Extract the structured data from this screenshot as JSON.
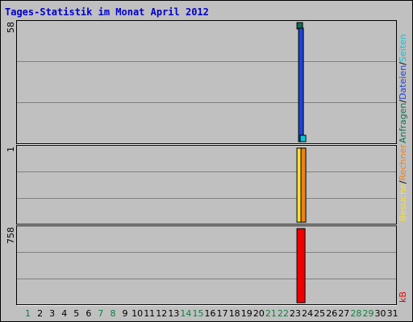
{
  "chart_data": {
    "type": "bar",
    "title": "Tages-Statistik im Monat April 2012",
    "days": [
      "1",
      "2",
      "3",
      "4",
      "5",
      "6",
      "7",
      "8",
      "9",
      "10",
      "11",
      "12",
      "13",
      "14",
      "15",
      "16",
      "17",
      "18",
      "19",
      "20",
      "21",
      "22",
      "23",
      "24",
      "25",
      "26",
      "27",
      "28",
      "29",
      "30",
      "31"
    ],
    "weekend_days": [
      "1",
      "7",
      "8",
      "14",
      "15",
      "21",
      "22",
      "28",
      "29"
    ],
    "panels": [
      {
        "id": "top",
        "max_label": "58",
        "max": 58,
        "series": [
          {
            "name": "Anfragen",
            "color": "#107050",
            "values": {
              "24": 58
            }
          },
          {
            "name": "Dateien",
            "color": "#1d43d6",
            "values": {
              "24": 56
            }
          },
          {
            "name": "Seiten",
            "color": "#00c8e0",
            "values": {
              "24": 3
            }
          }
        ]
      },
      {
        "id": "mid",
        "max_label": "1",
        "max": 1,
        "series": [
          {
            "name": "Besuche",
            "color": "#f8e030",
            "values": {
              "24": 1
            }
          },
          {
            "name": "Rechner",
            "color": "#f08018",
            "values": {
              "24": 1
            }
          }
        ]
      },
      {
        "id": "bot",
        "max_label": "758",
        "max": 758,
        "series": [
          {
            "name": "kB",
            "color": "#ee0000",
            "values": {
              "24": 758
            }
          }
        ]
      }
    ],
    "right_labels": {
      "top": [
        {
          "text": "Anfragen",
          "color": "#107050"
        },
        {
          "text": "/",
          "color": "#000000"
        },
        {
          "text": "Dateien",
          "color": "#1d43d6"
        },
        {
          "text": "/",
          "color": "#000000"
        },
        {
          "text": "Seiten",
          "color": "#00c8e0"
        }
      ],
      "mid": [
        {
          "text": "Besuche",
          "color": "#f8e030"
        },
        {
          "text": "/",
          "color": "#000000"
        },
        {
          "text": "Rechner",
          "color": "#f08018"
        }
      ],
      "bot": [
        {
          "text": "kB",
          "color": "#ee0000"
        }
      ]
    },
    "colors": {
      "background": "#c0c0c0",
      "title": "#0000c8",
      "grid": "#808080",
      "weekday_tick": "#000000",
      "weekend_tick": "#108040"
    }
  }
}
